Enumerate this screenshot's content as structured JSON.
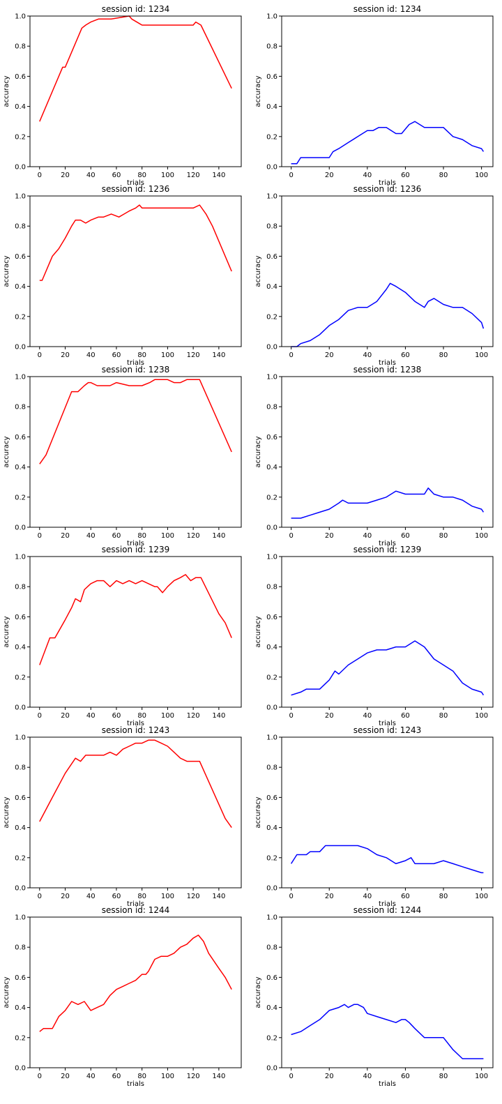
{
  "figure": {
    "colors": {
      "left": "#ff0000",
      "right": "#0000ff",
      "axis": "#000000"
    }
  },
  "chart_data": [
    {
      "type": "line",
      "title": "session id: 1234",
      "xlabel": "trials",
      "ylabel": "accuracy",
      "xlim": [
        -7.5,
        157.5
      ],
      "ylim": [
        0,
        1
      ],
      "xticks": [
        "0",
        "20",
        "40",
        "60",
        "80",
        "100",
        "120",
        "140"
      ],
      "yticks": [
        "0.0",
        "0.2",
        "0.4",
        "0.6",
        "0.8",
        "1.0"
      ],
      "color": "#ff0000",
      "series": [
        {
          "x": [
            0,
            18,
            20,
            33,
            36,
            40,
            46,
            56,
            70,
            72,
            78,
            80,
            100,
            120,
            122,
            126,
            150
          ],
          "y": [
            0.3,
            0.66,
            0.66,
            0.92,
            0.94,
            0.96,
            0.98,
            0.98,
            1.0,
            0.98,
            0.95,
            0.94,
            0.94,
            0.94,
            0.96,
            0.94,
            0.52
          ]
        }
      ]
    },
    {
      "type": "line",
      "title": "session id: 1234",
      "xlabel": "trials",
      "ylabel": "accuracy",
      "xlim": [
        -5,
        106
      ],
      "ylim": [
        0,
        1
      ],
      "xticks": [
        "0",
        "20",
        "40",
        "60",
        "80",
        "100"
      ],
      "yticks": [
        "0.0",
        "0.2",
        "0.4",
        "0.6",
        "0.8",
        "1.0"
      ],
      "color": "#0000ff",
      "series": [
        {
          "x": [
            0,
            3,
            5,
            20,
            22,
            25,
            30,
            35,
            40,
            43,
            46,
            50,
            55,
            58,
            62,
            65,
            70,
            80,
            85,
            90,
            95,
            100,
            101
          ],
          "y": [
            0.02,
            0.02,
            0.06,
            0.06,
            0.1,
            0.12,
            0.16,
            0.2,
            0.24,
            0.24,
            0.26,
            0.26,
            0.22,
            0.22,
            0.28,
            0.3,
            0.26,
            0.26,
            0.2,
            0.18,
            0.14,
            0.12,
            0.1
          ]
        }
      ]
    },
    {
      "type": "line",
      "title": "session id: 1236",
      "xlabel": "trials",
      "ylabel": "accuracy",
      "xlim": [
        -7.5,
        157.5
      ],
      "ylim": [
        0,
        1
      ],
      "xticks": [
        "0",
        "20",
        "40",
        "60",
        "80",
        "100",
        "120",
        "140"
      ],
      "yticks": [
        "0.0",
        "0.2",
        "0.4",
        "0.6",
        "0.8",
        "1.0"
      ],
      "color": "#ff0000",
      "series": [
        {
          "x": [
            0,
            2,
            10,
            15,
            20,
            25,
            28,
            32,
            36,
            40,
            46,
            50,
            56,
            62,
            66,
            70,
            75,
            78,
            80,
            100,
            110,
            120,
            125,
            130,
            135,
            150
          ],
          "y": [
            0.44,
            0.44,
            0.6,
            0.65,
            0.72,
            0.8,
            0.84,
            0.84,
            0.82,
            0.84,
            0.86,
            0.86,
            0.88,
            0.86,
            0.88,
            0.9,
            0.92,
            0.94,
            0.92,
            0.92,
            0.92,
            0.92,
            0.94,
            0.88,
            0.8,
            0.5
          ]
        }
      ]
    },
    {
      "type": "line",
      "title": "session id: 1236",
      "xlabel": "trials",
      "ylabel": "accuracy",
      "xlim": [
        -5,
        106
      ],
      "ylim": [
        0,
        1
      ],
      "xticks": [
        "0",
        "20",
        "40",
        "60",
        "80",
        "100"
      ],
      "yticks": [
        "0.0",
        "0.2",
        "0.4",
        "0.6",
        "0.8",
        "1.0"
      ],
      "color": "#0000ff",
      "series": [
        {
          "x": [
            0,
            3,
            5,
            10,
            15,
            20,
            25,
            30,
            35,
            40,
            45,
            50,
            52,
            55,
            60,
            65,
            70,
            72,
            75,
            80,
            85,
            90,
            95,
            100,
            101
          ],
          "y": [
            0.0,
            0.0,
            0.02,
            0.04,
            0.08,
            0.14,
            0.18,
            0.24,
            0.26,
            0.26,
            0.3,
            0.38,
            0.42,
            0.4,
            0.36,
            0.3,
            0.26,
            0.3,
            0.32,
            0.28,
            0.26,
            0.26,
            0.22,
            0.16,
            0.12
          ]
        }
      ]
    },
    {
      "type": "line",
      "title": "session id: 1238",
      "xlabel": "trials",
      "ylabel": "accuracy",
      "xlim": [
        -7.5,
        157.5
      ],
      "ylim": [
        0,
        1
      ],
      "xticks": [
        "0",
        "20",
        "40",
        "60",
        "80",
        "100",
        "120",
        "140"
      ],
      "yticks": [
        "0.0",
        "0.2",
        "0.4",
        "0.6",
        "0.8",
        "1.0"
      ],
      "color": "#ff0000",
      "series": [
        {
          "x": [
            0,
            5,
            25,
            30,
            35,
            38,
            40,
            45,
            55,
            60,
            70,
            80,
            86,
            90,
            100,
            105,
            110,
            115,
            125,
            150
          ],
          "y": [
            0.42,
            0.48,
            0.9,
            0.9,
            0.94,
            0.96,
            0.96,
            0.94,
            0.94,
            0.96,
            0.94,
            0.94,
            0.96,
            0.98,
            0.98,
            0.96,
            0.96,
            0.98,
            0.98,
            0.5
          ]
        }
      ]
    },
    {
      "type": "line",
      "title": "session id: 1238",
      "xlabel": "trials",
      "ylabel": "accuracy",
      "xlim": [
        -5,
        106
      ],
      "ylim": [
        0,
        1
      ],
      "xticks": [
        "0",
        "20",
        "40",
        "60",
        "80",
        "100"
      ],
      "yticks": [
        "0.0",
        "0.2",
        "0.4",
        "0.6",
        "0.8",
        "1.0"
      ],
      "color": "#0000ff",
      "series": [
        {
          "x": [
            0,
            5,
            10,
            15,
            20,
            25,
            27,
            30,
            35,
            40,
            45,
            50,
            55,
            60,
            65,
            70,
            72,
            75,
            80,
            85,
            90,
            95,
            100,
            101
          ],
          "y": [
            0.06,
            0.06,
            0.08,
            0.1,
            0.12,
            0.16,
            0.18,
            0.16,
            0.16,
            0.16,
            0.18,
            0.2,
            0.24,
            0.22,
            0.22,
            0.22,
            0.26,
            0.22,
            0.2,
            0.2,
            0.18,
            0.14,
            0.12,
            0.1
          ]
        }
      ]
    },
    {
      "type": "line",
      "title": "session id: 1239",
      "xlabel": "trials",
      "ylabel": "accuracy",
      "xlim": [
        -7.5,
        157.5
      ],
      "ylim": [
        0,
        1
      ],
      "xticks": [
        "0",
        "20",
        "40",
        "60",
        "80",
        "100",
        "120",
        "140"
      ],
      "yticks": [
        "0.0",
        "0.2",
        "0.4",
        "0.6",
        "0.8",
        "1.0"
      ],
      "color": "#ff0000",
      "series": [
        {
          "x": [
            0,
            8,
            12,
            20,
            25,
            28,
            32,
            35,
            40,
            45,
            50,
            55,
            60,
            65,
            70,
            75,
            80,
            90,
            92,
            96,
            100,
            105,
            110,
            114,
            118,
            122,
            126,
            140,
            145,
            150
          ],
          "y": [
            0.28,
            0.46,
            0.46,
            0.58,
            0.66,
            0.72,
            0.7,
            0.78,
            0.82,
            0.84,
            0.84,
            0.8,
            0.84,
            0.82,
            0.84,
            0.82,
            0.84,
            0.8,
            0.8,
            0.76,
            0.8,
            0.84,
            0.86,
            0.88,
            0.84,
            0.86,
            0.86,
            0.62,
            0.56,
            0.46
          ]
        }
      ]
    },
    {
      "type": "line",
      "title": "session id: 1239",
      "xlabel": "trials",
      "ylabel": "accuracy",
      "xlim": [
        -5,
        106
      ],
      "ylim": [
        0,
        1
      ],
      "xticks": [
        "0",
        "20",
        "40",
        "60",
        "80",
        "100"
      ],
      "yticks": [
        "0.0",
        "0.2",
        "0.4",
        "0.6",
        "0.8",
        "1.0"
      ],
      "color": "#0000ff",
      "series": [
        {
          "x": [
            0,
            5,
            8,
            15,
            20,
            23,
            25,
            30,
            35,
            40,
            45,
            50,
            55,
            60,
            65,
            70,
            75,
            80,
            85,
            90,
            95,
            100,
            101
          ],
          "y": [
            0.08,
            0.1,
            0.12,
            0.12,
            0.18,
            0.24,
            0.22,
            0.28,
            0.32,
            0.36,
            0.38,
            0.38,
            0.4,
            0.4,
            0.44,
            0.4,
            0.32,
            0.28,
            0.24,
            0.16,
            0.12,
            0.1,
            0.08
          ]
        }
      ]
    },
    {
      "type": "line",
      "title": "session id: 1243",
      "xlabel": "trials",
      "ylabel": "accuracy",
      "xlim": [
        -7.5,
        157.5
      ],
      "ylim": [
        0,
        1
      ],
      "xticks": [
        "0",
        "20",
        "40",
        "60",
        "80",
        "100",
        "120",
        "140"
      ],
      "yticks": [
        "0.0",
        "0.2",
        "0.4",
        "0.6",
        "0.8",
        "1.0"
      ],
      "color": "#ff0000",
      "series": [
        {
          "x": [
            0,
            10,
            20,
            28,
            32,
            36,
            40,
            50,
            55,
            60,
            65,
            70,
            75,
            80,
            85,
            90,
            95,
            100,
            105,
            110,
            115,
            125,
            145,
            150
          ],
          "y": [
            0.44,
            0.6,
            0.76,
            0.86,
            0.84,
            0.88,
            0.88,
            0.88,
            0.9,
            0.88,
            0.92,
            0.94,
            0.96,
            0.96,
            0.98,
            0.98,
            0.96,
            0.94,
            0.9,
            0.86,
            0.84,
            0.84,
            0.46,
            0.4
          ]
        }
      ]
    },
    {
      "type": "line",
      "title": "session id: 1243",
      "xlabel": "trials",
      "ylabel": "accuracy",
      "xlim": [
        -5,
        106
      ],
      "ylim": [
        0,
        1
      ],
      "xticks": [
        "0",
        "20",
        "40",
        "60",
        "80",
        "100"
      ],
      "yticks": [
        "0.0",
        "0.2",
        "0.4",
        "0.6",
        "0.8",
        "1.0"
      ],
      "color": "#0000ff",
      "series": [
        {
          "x": [
            0,
            3,
            8,
            10,
            15,
            18,
            25,
            30,
            35,
            40,
            45,
            50,
            55,
            60,
            63,
            65,
            70,
            75,
            80,
            85,
            90,
            95,
            100,
            101
          ],
          "y": [
            0.16,
            0.22,
            0.22,
            0.24,
            0.24,
            0.28,
            0.28,
            0.28,
            0.28,
            0.26,
            0.22,
            0.2,
            0.16,
            0.18,
            0.2,
            0.16,
            0.16,
            0.16,
            0.18,
            0.16,
            0.14,
            0.12,
            0.1,
            0.1
          ]
        }
      ]
    },
    {
      "type": "line",
      "title": "session id: 1244",
      "xlabel": "trials",
      "ylabel": "accuracy",
      "xlim": [
        -7.5,
        157.5
      ],
      "ylim": [
        0,
        1
      ],
      "xticks": [
        "0",
        "20",
        "40",
        "60",
        "80",
        "100",
        "120",
        "140"
      ],
      "yticks": [
        "0.0",
        "0.2",
        "0.4",
        "0.6",
        "0.8",
        "1.0"
      ],
      "color": "#ff0000",
      "series": [
        {
          "x": [
            0,
            3,
            10,
            15,
            20,
            25,
            30,
            35,
            40,
            45,
            50,
            55,
            60,
            65,
            70,
            75,
            80,
            83,
            85,
            90,
            95,
            100,
            105,
            110,
            115,
            120,
            124,
            128,
            132,
            140,
            145,
            150
          ],
          "y": [
            0.24,
            0.26,
            0.26,
            0.34,
            0.38,
            0.44,
            0.42,
            0.44,
            0.38,
            0.4,
            0.42,
            0.48,
            0.52,
            0.54,
            0.56,
            0.58,
            0.62,
            0.62,
            0.64,
            0.72,
            0.74,
            0.74,
            0.76,
            0.8,
            0.82,
            0.86,
            0.88,
            0.84,
            0.76,
            0.66,
            0.6,
            0.52
          ]
        }
      ]
    },
    {
      "type": "line",
      "title": "session id: 1244",
      "xlabel": "trials",
      "ylabel": "accuracy",
      "xlim": [
        -5,
        106
      ],
      "ylim": [
        0,
        1
      ],
      "xticks": [
        "0",
        "20",
        "40",
        "60",
        "80",
        "100"
      ],
      "yticks": [
        "0.0",
        "0.2",
        "0.4",
        "0.6",
        "0.8",
        "1.0"
      ],
      "color": "#0000ff",
      "series": [
        {
          "x": [
            0,
            5,
            10,
            15,
            20,
            25,
            28,
            30,
            33,
            35,
            38,
            40,
            45,
            50,
            55,
            58,
            60,
            62,
            65,
            70,
            75,
            80,
            85,
            90,
            95,
            100,
            101
          ],
          "y": [
            0.22,
            0.24,
            0.28,
            0.32,
            0.38,
            0.4,
            0.42,
            0.4,
            0.42,
            0.42,
            0.4,
            0.36,
            0.34,
            0.32,
            0.3,
            0.32,
            0.32,
            0.3,
            0.26,
            0.2,
            0.2,
            0.2,
            0.12,
            0.06,
            0.06,
            0.06,
            0.06
          ]
        }
      ]
    }
  ]
}
